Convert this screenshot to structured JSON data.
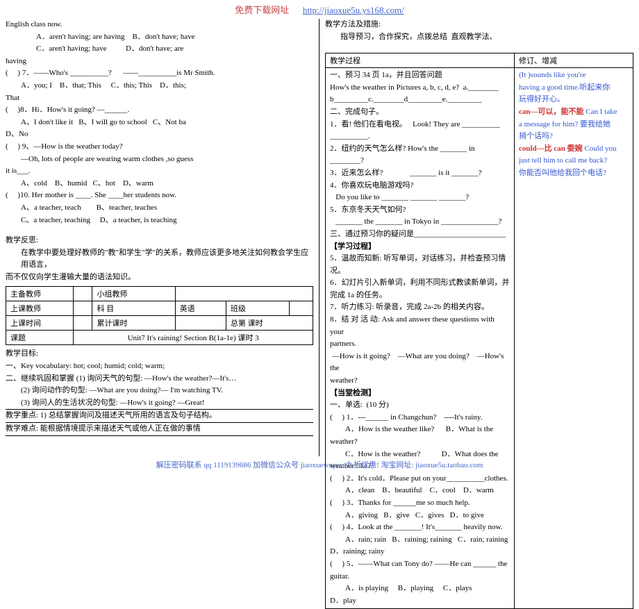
{
  "header": {
    "label": "免费下载网址",
    "url": "http://jiaoxue5u.ys168.com/"
  },
  "left": {
    "l1": "English class now.",
    "l2": "A．aren't having; are having    B．don't have; have",
    "l3": "C．aren't having; have          D．don't have; are",
    "l4": "having",
    "l5": "(     ) 7．——Who's __________?      ——__________is Mr Smith.",
    "l6": "A．you; I    B．that; This     C．this; This    D．this;",
    "l7": "That",
    "l8": "(     )8．Hi．How's it going? —______.",
    "l9": "A、I don't like it   B、I will go to school   C、Not ba",
    "l10": "D、No",
    "l11": "(     ) 9、—How is the weather today?",
    "l12": "—Oh, lots of people are wearing warm clothes ,so guess",
    "l13": "it is___.",
    "l14": "A、cold    B、humid   C、hot    D、warm",
    "l15": "(     )10. Her mother is ____. She ____her students now.",
    "l16": "A、a teacher, teach        B、teacher, teaches",
    "l17": "C、a teacher, teaching     D、a teacher, is teaching",
    "reflect_title": "教学反思:",
    "reflect1": "在教学中要处理好教师的\"教\"和学生\"学\"的关系，教师应该更多地关注如何教会学生应用语言，",
    "reflect2": "而不仅仅向学生灌输大量的语法知识。",
    "table": {
      "r1c1": "主备教师",
      "r1c3": "小组教师",
      "r2c1": "上课教师",
      "r2c3": "科  目",
      "r2c4": "英语",
      "r2c5": "班级",
      "r3c1": "上课时间",
      "r3c3": "累计课时",
      "r3c5": "总第          课时",
      "r4c1": "课题",
      "r4c2": "Unit7  It's raining!   Section B(1a-1e) 课时 3"
    },
    "obj_title": "教学目标:",
    "obj1": "一、Key vocabulary: hot; cool; humid; cold; warm;",
    "obj2": "二、继续巩固和掌握 (1) 询问天气的句型: —How's the weather?—It's…",
    "obj3": "(2) 询问动作的句型: —What are you doing?— I'm watching TV.",
    "obj4": "(3) 询问人的生活状况的句型: —How's it going? —Great!",
    "focus": "教学重点: 1) 总结掌握询问及描述天气所用的语言及句子结构。",
    "diff": "教学难点: 能根据情境提示来描述天气或他人正在做的事情"
  },
  "right": {
    "method_title": "教学方法及措施:",
    "method1": "指导预习，合作探究，点拨总结  直观教学法、",
    "proc_title": "教学过程",
    "mod_title": "修订、增减",
    "p1": "一、预习 34 页 1a，并且回答问题",
    "p2": "How's the weather in Pictures a, b, c, d, e?  a.________",
    "p3": "b_________c.________d_________e._________",
    "p4": "二、完成句子。",
    "p5": "1．看! 他们在看电视。   Look! They are __________ __________.",
    "p6": "2．纽约的天气怎么样? How's the _______ in ________?",
    "p7": "3．近来怎么样?              _______ is it _______?",
    "p8": "4．你喜欢玩电脑游戏吗?",
    "p9": "   Do you like to _______ _______ _______?",
    "p10": "5．东京冬天天气如何?",
    "p11": "   _______ the _______ in Tokyo in _______________?",
    "p12": "三、通过预习你的疑问是________________________",
    "study_title": "【学习过程】",
    "s5": "5．温故而知新: 听写单词，对话练习，并检查预习情况。",
    "s6": "6．幻灯片引入新单词，利用不同形式教读新单词，并完成 1a 的任务。",
    "s7": "7．听力练习: 听录音，完成 2a-2b 的相关内容。",
    "s8": "8．结 对 活 动: Ask and answer these questions with your",
    "s8b": "partners.",
    "s9": " —How is it going?    —What are you doing?    —How's the",
    "s9b": "weather?",
    "check_title": "【当堂检测】",
    "c_head": "一、单选:  (10 分)",
    "c1": "(     ) 1．---______ in Changchun?    ----It's rainy.",
    "c1a": "A．How is the weather like?      B．What is the",
    "c1b": "weather?",
    "c1c": "C．How is the weather?           D．What does the",
    "c1d": "weather like?",
    "c2": "(     ) 2．It's cold．Please put on your__________clothes.",
    "c2a": "A．clean    B．beautiful    C．cool    D．warm",
    "c3": "(     ) 3．Thanks for ______me so much help.",
    "c3a": "A．giving   B．give   C．gives   D．to give",
    "c4": "(     ) 4．Look at the _______! It's_______ heavily now.",
    "c4a": "A．rain; rain   B．raining; raining   C．rain; raining",
    "c4b": "D．raining; rainy",
    "c5": "(     ) 5．——What can Tony do? ——He can ______ the guitar.",
    "c5a": "A．is playing     B．playing     C．plays",
    "c5b": "D．play",
    "note1a": "(It )sounds like you're",
    "note1b": "having a good time.听起来你",
    "note1c": "玩得好开心。",
    "note2a": "can—可以，能不能",
    "note2b": " Can I take",
    "note2c": "a message for him? 要我给她",
    "note2d": "捎个话吗?",
    "note3a": "could—比 can 委婉",
    "note3b": " Could you",
    "note3c": "just tell him to call me back?",
    "note3d": "你能否叫他给我回个电话?"
  },
  "footer": "解压密码联系 qq 1119139686   加微信公众号 jiaoxuewuyou  九折优惠! 淘宝网址: jiaoxue5u.taobao.com"
}
